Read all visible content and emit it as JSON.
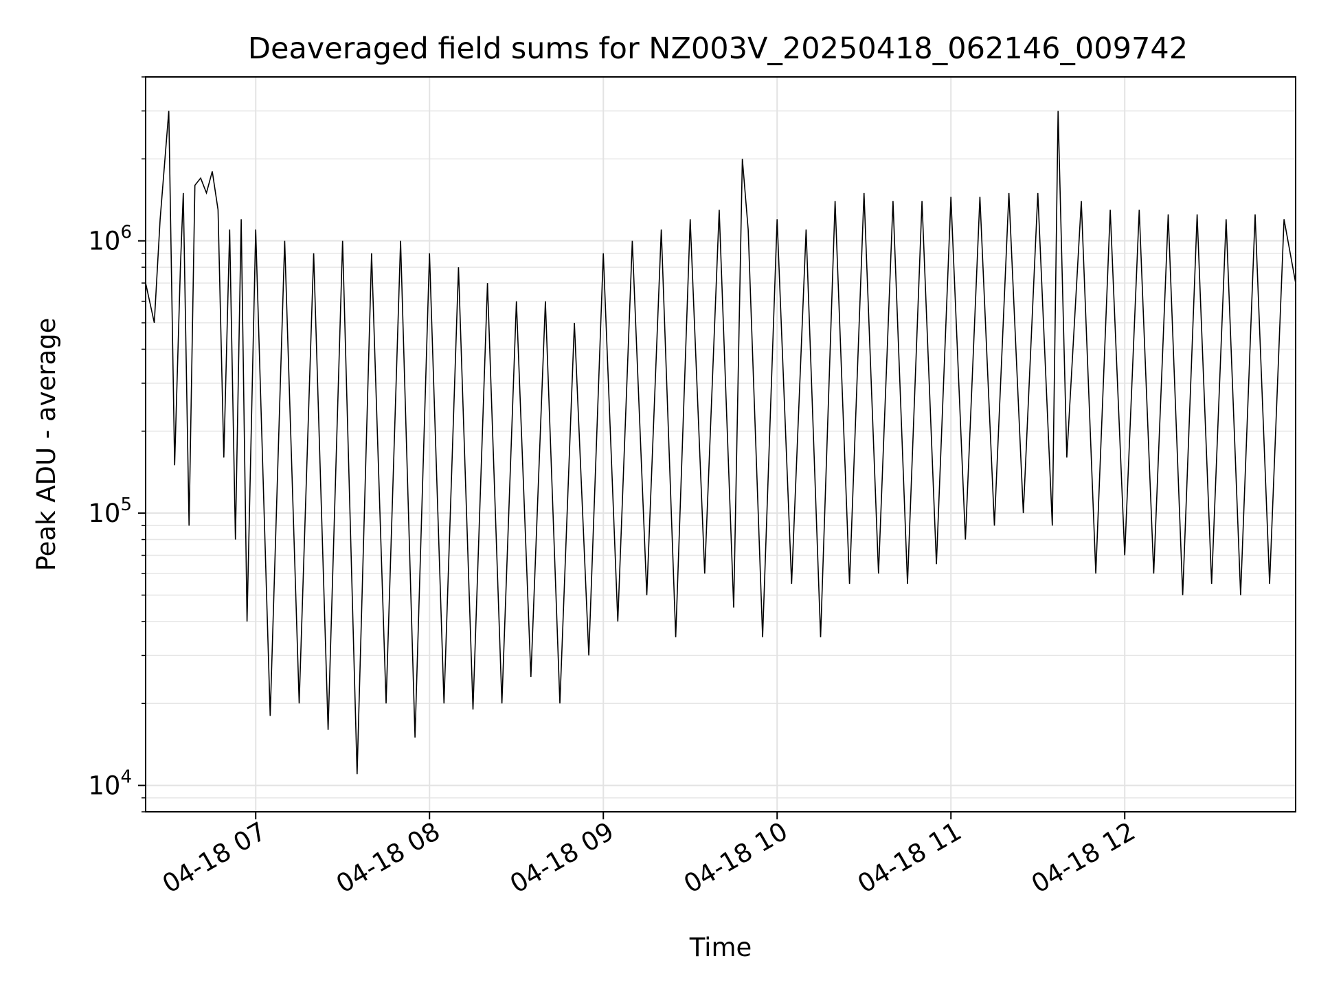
{
  "chart_data": {
    "type": "line",
    "title": "Deaveraged field sums for NZ003V_20250418_062146_009742",
    "xlabel": "Time",
    "ylabel": "Peak ADU - average",
    "y_scale": "log",
    "x_range": [
      "2025-04-18 06:22",
      "2025-04-18 12:59"
    ],
    "ylim": [
      8000,
      4000000
    ],
    "grid": true,
    "x_ticks": [
      {
        "value": "2025-04-18 07:00",
        "label": "04-18 07"
      },
      {
        "value": "2025-04-18 08:00",
        "label": "04-18 08"
      },
      {
        "value": "2025-04-18 09:00",
        "label": "04-18 09"
      },
      {
        "value": "2025-04-18 10:00",
        "label": "04-18 10"
      },
      {
        "value": "2025-04-18 11:00",
        "label": "04-18 11"
      },
      {
        "value": "2025-04-18 12:00",
        "label": "04-18 12"
      }
    ],
    "y_ticks": [
      {
        "value": 10000,
        "base": "10",
        "exp": "4"
      },
      {
        "value": 100000,
        "base": "10",
        "exp": "5"
      },
      {
        "value": 1000000,
        "base": "10",
        "exp": "6"
      }
    ],
    "series": [
      {
        "line_color": "#000000",
        "x": [
          "2025-04-18 06:22",
          "2025-04-18 06:25",
          "2025-04-18 06:27",
          "2025-04-18 06:30",
          "2025-04-18 06:32",
          "2025-04-18 06:34",
          "2025-04-18 06:35",
          "2025-04-18 06:37",
          "2025-04-18 06:39",
          "2025-04-18 06:41",
          "2025-04-18 06:43",
          "2025-04-18 06:45",
          "2025-04-18 06:47",
          "2025-04-18 06:49",
          "2025-04-18 06:51",
          "2025-04-18 06:53",
          "2025-04-18 06:55",
          "2025-04-18 06:57",
          "2025-04-18 07:00",
          "2025-04-18 07:05",
          "2025-04-18 07:10",
          "2025-04-18 07:15",
          "2025-04-18 07:20",
          "2025-04-18 07:25",
          "2025-04-18 07:30",
          "2025-04-18 07:35",
          "2025-04-18 07:40",
          "2025-04-18 07:45",
          "2025-04-18 07:50",
          "2025-04-18 07:55",
          "2025-04-18 08:00",
          "2025-04-18 08:05",
          "2025-04-18 08:10",
          "2025-04-18 08:15",
          "2025-04-18 08:20",
          "2025-04-18 08:25",
          "2025-04-18 08:30",
          "2025-04-18 08:35",
          "2025-04-18 08:40",
          "2025-04-18 08:45",
          "2025-04-18 08:50",
          "2025-04-18 08:55",
          "2025-04-18 09:00",
          "2025-04-18 09:05",
          "2025-04-18 09:10",
          "2025-04-18 09:15",
          "2025-04-18 09:20",
          "2025-04-18 09:25",
          "2025-04-18 09:30",
          "2025-04-18 09:35",
          "2025-04-18 09:40",
          "2025-04-18 09:45",
          "2025-04-18 09:48",
          "2025-04-18 09:50",
          "2025-04-18 09:55",
          "2025-04-18 10:00",
          "2025-04-18 10:05",
          "2025-04-18 10:10",
          "2025-04-18 10:15",
          "2025-04-18 10:20",
          "2025-04-18 10:25",
          "2025-04-18 10:30",
          "2025-04-18 10:35",
          "2025-04-18 10:40",
          "2025-04-18 10:45",
          "2025-04-18 10:50",
          "2025-04-18 10:55",
          "2025-04-18 11:00",
          "2025-04-18 11:05",
          "2025-04-18 11:10",
          "2025-04-18 11:15",
          "2025-04-18 11:20",
          "2025-04-18 11:25",
          "2025-04-18 11:30",
          "2025-04-18 11:35",
          "2025-04-18 11:37",
          "2025-04-18 11:40",
          "2025-04-18 11:45",
          "2025-04-18 11:50",
          "2025-04-18 11:55",
          "2025-04-18 12:00",
          "2025-04-18 12:05",
          "2025-04-18 12:10",
          "2025-04-18 12:15",
          "2025-04-18 12:20",
          "2025-04-18 12:25",
          "2025-04-18 12:30",
          "2025-04-18 12:35",
          "2025-04-18 12:40",
          "2025-04-18 12:45",
          "2025-04-18 12:50",
          "2025-04-18 12:55",
          "2025-04-18 12:59"
        ],
        "values": [
          700000,
          500000,
          1200000,
          3000000,
          150000,
          800000,
          1500000,
          90000,
          1600000,
          1700000,
          1500000,
          1800000,
          1300000,
          160000,
          1100000,
          80000,
          1200000,
          40000,
          1100000,
          18000,
          1000000,
          20000,
          900000,
          16000,
          1000000,
          11000,
          900000,
          20000,
          1000000,
          15000,
          900000,
          20000,
          800000,
          19000,
          700000,
          20000,
          600000,
          25000,
          600000,
          20000,
          500000,
          30000,
          900000,
          40000,
          1000000,
          50000,
          1100000,
          35000,
          1200000,
          60000,
          1300000,
          45000,
          2000000,
          1100000,
          35000,
          1200000,
          55000,
          1100000,
          35000,
          1400000,
          55000,
          1500000,
          60000,
          1400000,
          55000,
          1400000,
          65000,
          1450000,
          80000,
          1450000,
          90000,
          1500000,
          100000,
          1500000,
          90000,
          3000000,
          160000,
          1400000,
          60000,
          1300000,
          70000,
          1300000,
          60000,
          1250000,
          50000,
          1250000,
          55000,
          1200000,
          50000,
          1250000,
          55000,
          1200000,
          700000
        ]
      }
    ]
  }
}
